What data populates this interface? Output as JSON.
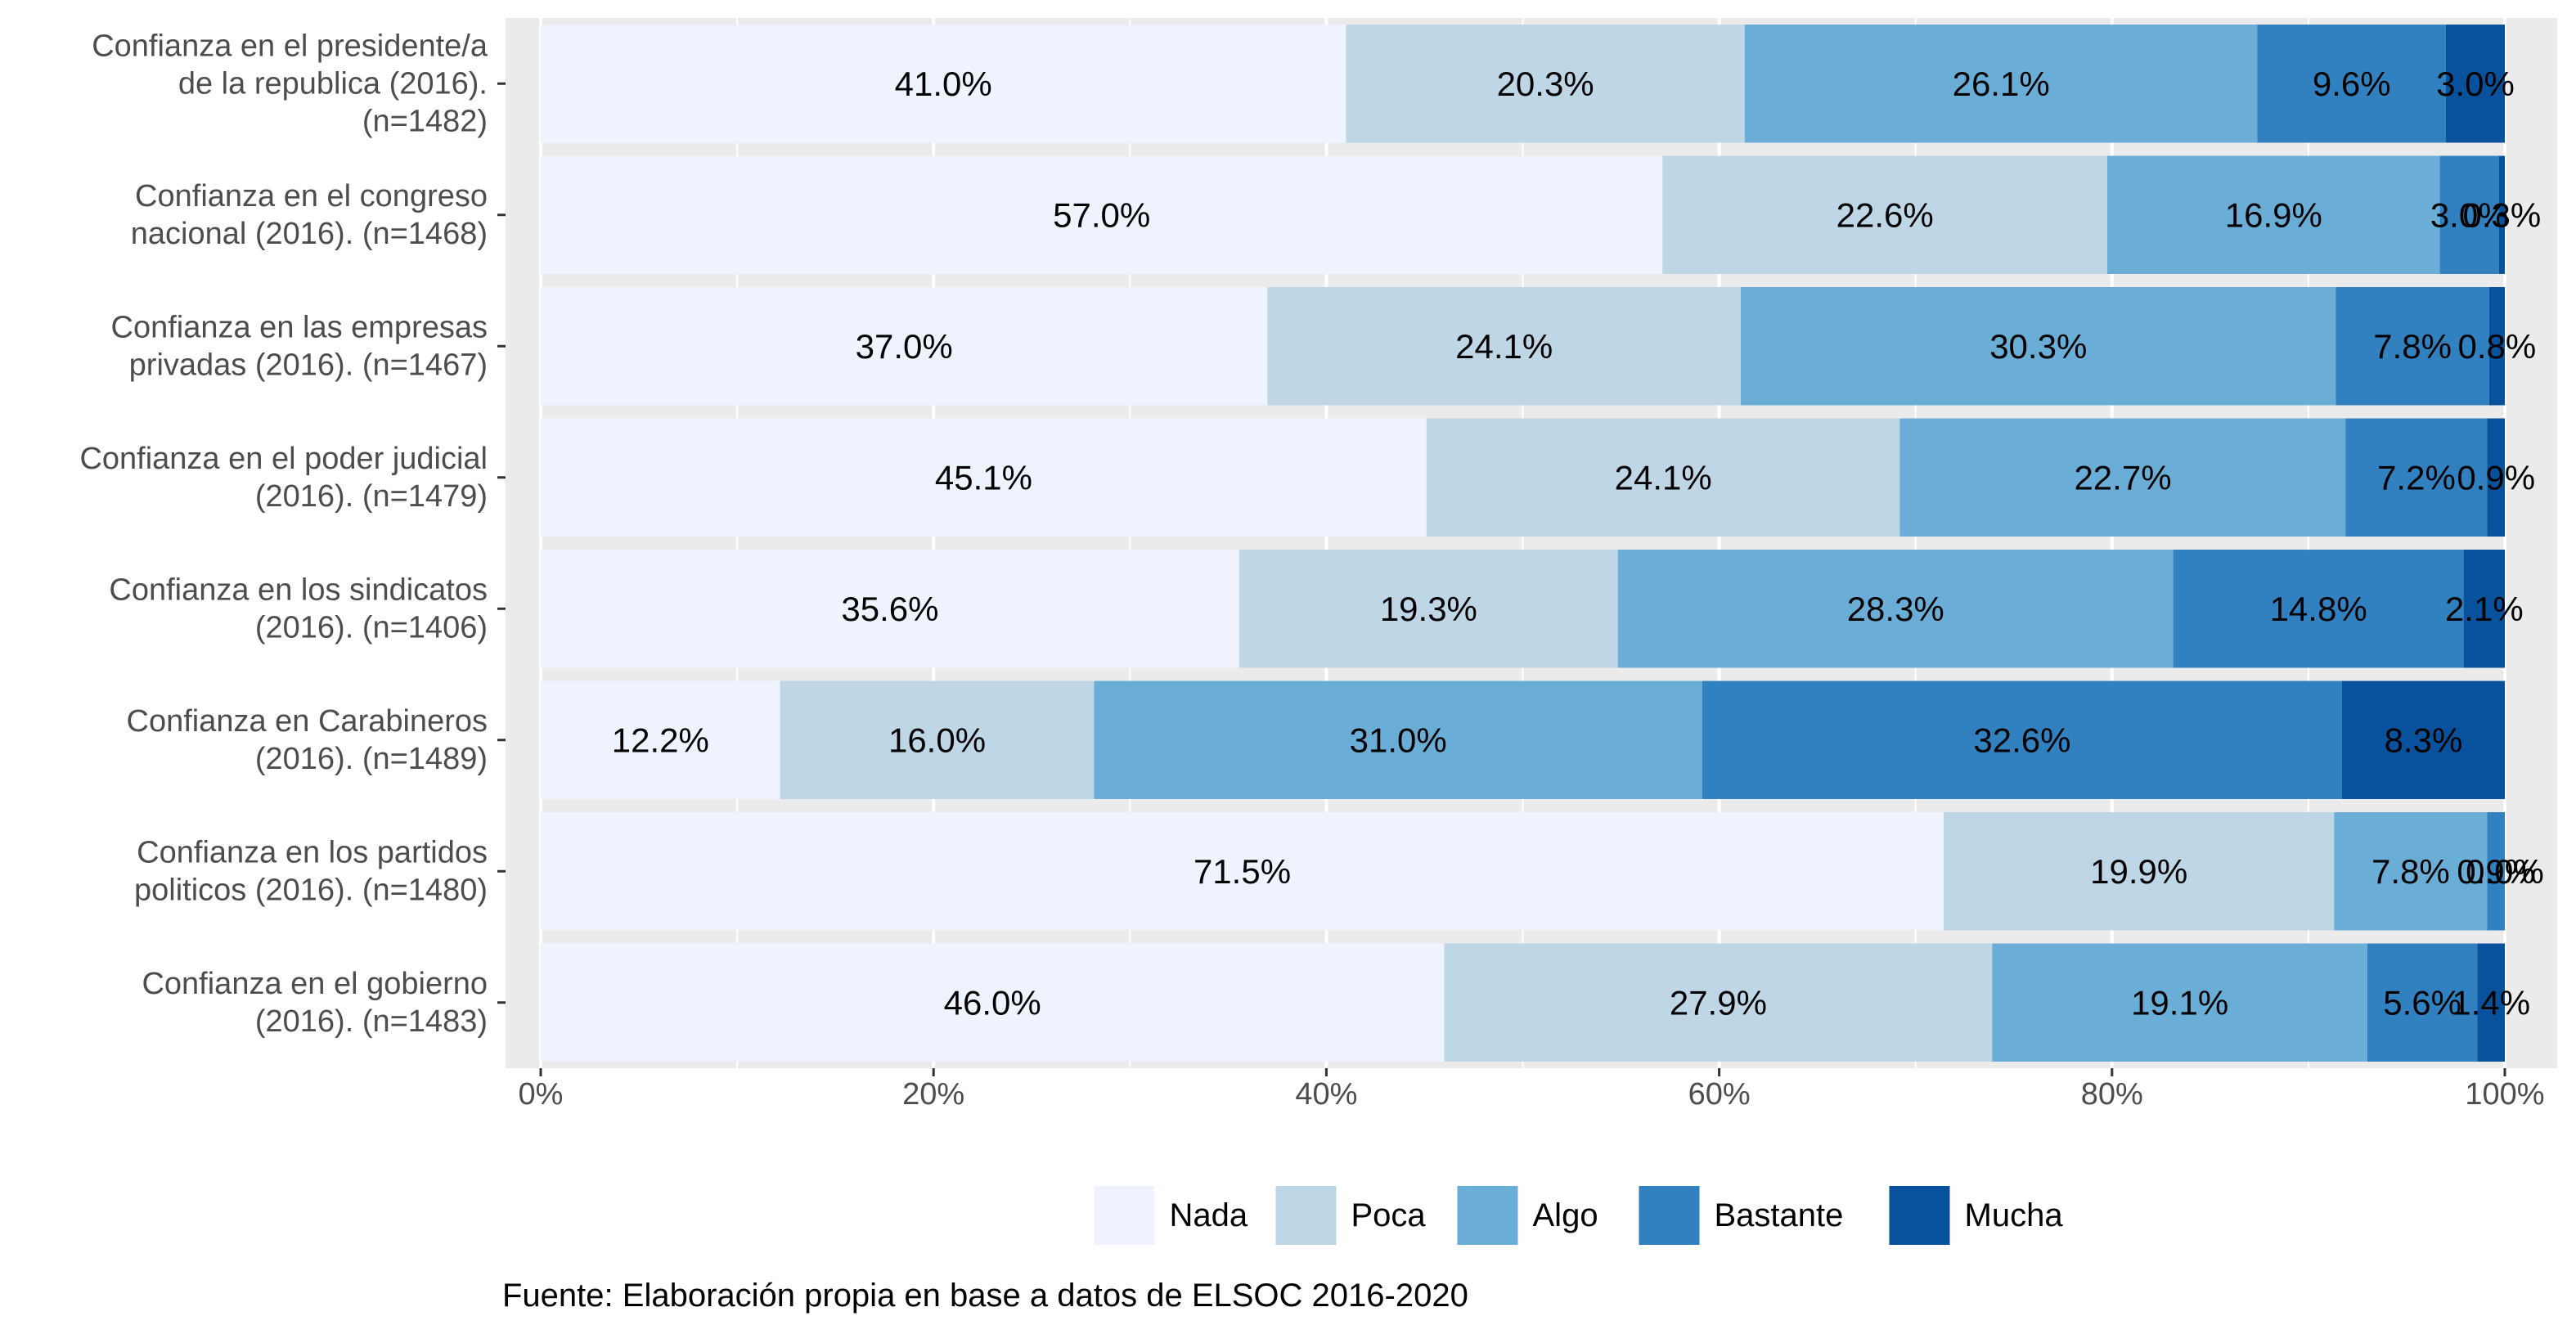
{
  "chart_data": {
    "type": "bar",
    "orientation": "horizontal",
    "stacked": "percent",
    "categories": [
      [
        "Confianza en el presidente/a",
        "de la republica (2016).",
        "(n=1482)"
      ],
      [
        "Confianza en el congreso",
        "nacional (2016). (n=1468)"
      ],
      [
        "Confianza en las empresas",
        "privadas (2016). (n=1467)"
      ],
      [
        "Confianza en el poder judicial",
        "(2016). (n=1479)"
      ],
      [
        "Confianza en los sindicatos",
        "(2016). (n=1406)"
      ],
      [
        "Confianza en Carabineros",
        "(2016). (n=1489)"
      ],
      [
        "Confianza en los partidos",
        "politicos (2016). (n=1480)"
      ],
      [
        "Confianza en el gobierno",
        "(2016). (n=1483)"
      ]
    ],
    "series": [
      {
        "name": "Nada",
        "color": "#eef3fe",
        "values": [
          41.0,
          57.0,
          37.0,
          45.1,
          35.6,
          12.2,
          71.5,
          46.0
        ]
      },
      {
        "name": "Poca",
        "color": "#bfd6e6",
        "values": [
          20.3,
          22.6,
          24.1,
          24.1,
          19.3,
          16.0,
          19.9,
          27.9
        ]
      },
      {
        "name": "Algo",
        "color": "#6aadd6",
        "values": [
          26.1,
          16.9,
          30.3,
          22.7,
          28.3,
          31.0,
          7.8,
          19.1
        ]
      },
      {
        "name": "Bastante",
        "color": "#3180bf",
        "values": [
          9.6,
          3.0,
          7.8,
          7.2,
          14.8,
          32.6,
          0.9,
          5.6
        ]
      },
      {
        "name": "Mucha",
        "color": "#08519c",
        "values": [
          3.0,
          0.3,
          0.8,
          0.9,
          2.1,
          8.3,
          0.0,
          1.4
        ]
      }
    ],
    "data_labels": [
      [
        "41.0%",
        "20.3%",
        "26.1%",
        "9.6%",
        "3.0%"
      ],
      [
        "57.0%",
        "22.6%",
        "16.9%",
        "3.0%",
        "0.3%"
      ],
      [
        "37.0%",
        "24.1%",
        "30.3%",
        "7.8%",
        "0.8%"
      ],
      [
        "45.1%",
        "24.1%",
        "22.7%",
        "7.2%",
        "0.9%"
      ],
      [
        "35.6%",
        "19.3%",
        "28.3%",
        "14.8%",
        "2.1%"
      ],
      [
        "12.2%",
        "16.0%",
        "31.0%",
        "32.6%",
        "8.3%"
      ],
      [
        "71.5%",
        "19.9%",
        "7.8%",
        "0.9%",
        "0.0%"
      ],
      [
        "46.0%",
        "27.9%",
        "19.1%",
        "5.6%",
        "1.4%"
      ]
    ],
    "xticks": [
      "0%",
      "20%",
      "40%",
      "60%",
      "80%",
      "100%"
    ],
    "xlim": [
      0,
      100
    ],
    "grid": true,
    "panel_background": "#ebebeb",
    "legend_position": "bottom",
    "title": "",
    "xlabel": "",
    "ylabel": ""
  },
  "caption": "Fuente: Elaboración propia en base a datos de ELSOC 2016-2020"
}
